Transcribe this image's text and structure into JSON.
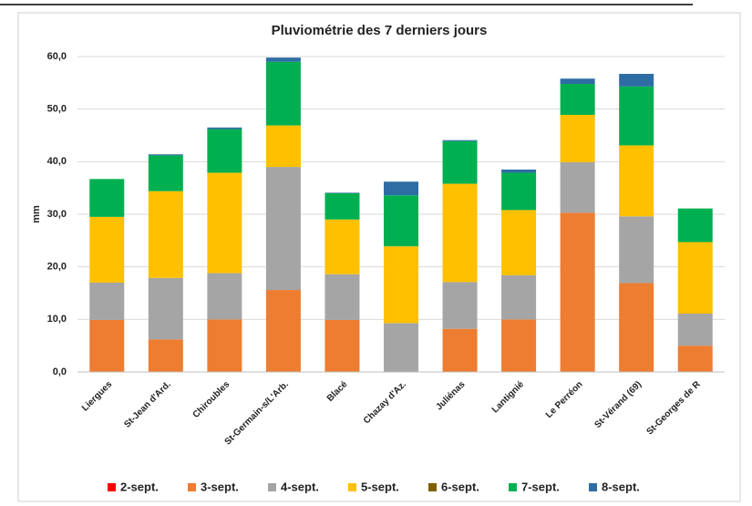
{
  "chart_data": {
    "type": "stacked_bar",
    "title": "Pluviométrie des 7 derniers jours",
    "y_label": "mm",
    "categories": [
      "Liergues",
      "St-Jean d'Ard.",
      "Chiroubles",
      "St-Germain-s/L'Arb.",
      "Blacé",
      "Chazay d'Az.",
      "Juliénas",
      "Lantignié",
      "Le Perréon",
      "St-Vérand (69)",
      "St-Georges de R"
    ],
    "series": [
      {
        "name": "2-sept.",
        "color": "#ff0000",
        "values": [
          0,
          0,
          0,
          0,
          0,
          0,
          0,
          0,
          0,
          0,
          0
        ]
      },
      {
        "name": "3-sept.",
        "color": "#ed7d31",
        "values": [
          9.9,
          6.2,
          10.0,
          15.6,
          9.9,
          0,
          8.2,
          10.0,
          30.3,
          16.9,
          5.0
        ]
      },
      {
        "name": "4-sept.",
        "color": "#a5a5a5",
        "values": [
          7.1,
          11.7,
          8.8,
          23.4,
          8.7,
          9.3,
          8.9,
          8.4,
          9.6,
          12.7,
          6.1
        ]
      },
      {
        "name": "5-sept.",
        "color": "#ffc000",
        "values": [
          12.5,
          16.5,
          19.1,
          7.9,
          10.4,
          14.6,
          18.7,
          12.4,
          9.0,
          13.5,
          13.6
        ]
      },
      {
        "name": "6-sept.",
        "color": "#7f6000",
        "values": [
          0,
          0,
          0,
          0,
          0,
          0,
          0,
          0,
          0,
          0,
          0
        ]
      },
      {
        "name": "7-sept.",
        "color": "#00b050",
        "values": [
          7.2,
          6.8,
          8.3,
          12.1,
          5.0,
          9.7,
          8.1,
          7.1,
          5.9,
          11.2,
          6.4
        ]
      },
      {
        "name": "8-sept.",
        "color": "#2e6da4",
        "values": [
          0,
          0.2,
          0.3,
          0.8,
          0.1,
          2.6,
          0.2,
          0.6,
          1.0,
          2.4,
          0
        ]
      }
    ],
    "ylim": [
      0,
      60
    ],
    "yticks": [
      {
        "value": 0,
        "label": "0,0"
      },
      {
        "value": 10,
        "label": "10,0"
      },
      {
        "value": 20,
        "label": "20,0"
      },
      {
        "value": 30,
        "label": "30,0"
      },
      {
        "value": 40,
        "label": "40,0"
      },
      {
        "value": 50,
        "label": "50,0"
      },
      {
        "value": 60,
        "label": "60,0"
      }
    ],
    "grid": true,
    "legend": "bottom"
  }
}
